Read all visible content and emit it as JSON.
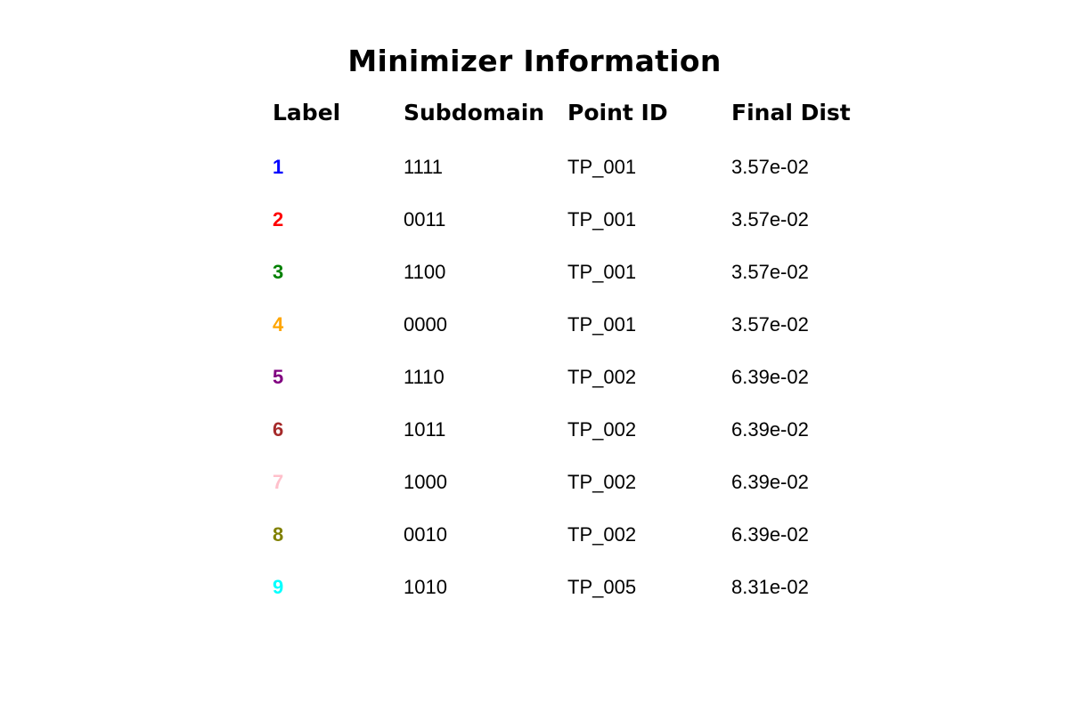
{
  "chart_data": {
    "type": "table",
    "title": "Minimizer Information",
    "columns": [
      "Label",
      "Subdomain",
      "Point ID",
      "Final Dist"
    ],
    "rows": [
      {
        "label": "1",
        "subdomain": "1111",
        "point_id": "TP_001",
        "final_dist": "3.57e-02",
        "color": "#0000ff"
      },
      {
        "label": "2",
        "subdomain": "0011",
        "point_id": "TP_001",
        "final_dist": "3.57e-02",
        "color": "#ff0000"
      },
      {
        "label": "3",
        "subdomain": "1100",
        "point_id": "TP_001",
        "final_dist": "3.57e-02",
        "color": "#008000"
      },
      {
        "label": "4",
        "subdomain": "0000",
        "point_id": "TP_001",
        "final_dist": "3.57e-02",
        "color": "#ffa500"
      },
      {
        "label": "5",
        "subdomain": "1110",
        "point_id": "TP_002",
        "final_dist": "6.39e-02",
        "color": "#800080"
      },
      {
        "label": "6",
        "subdomain": "1011",
        "point_id": "TP_002",
        "final_dist": "6.39e-02",
        "color": "#a52a2a"
      },
      {
        "label": "7",
        "subdomain": "1000",
        "point_id": "TP_002",
        "final_dist": "6.39e-02",
        "color": "#ffc0cb"
      },
      {
        "label": "8",
        "subdomain": "0010",
        "point_id": "TP_002",
        "final_dist": "6.39e-02",
        "color": "#808000"
      },
      {
        "label": "9",
        "subdomain": "1010",
        "point_id": "TP_005",
        "final_dist": "8.31e-02",
        "color": "#00ffff"
      }
    ]
  }
}
